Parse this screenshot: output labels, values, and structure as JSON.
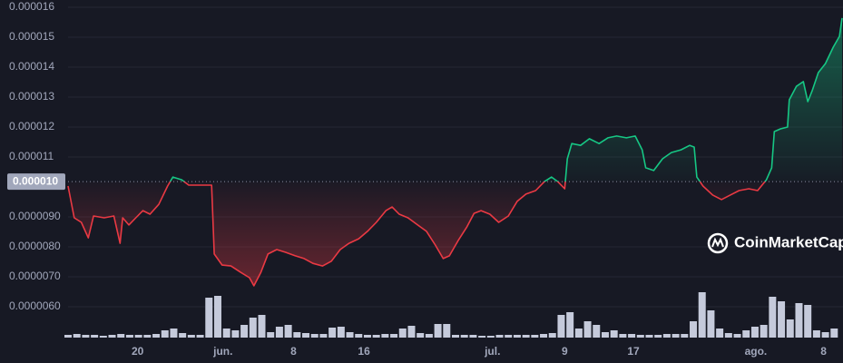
{
  "chart_data": {
    "type": "line",
    "watermark": "CoinMarketCap",
    "baseline": {
      "value": 1.018e-05,
      "label": "0.000010"
    },
    "colors": {
      "up": "#16c784",
      "down": "#ea3943",
      "volume": "#c5cadb"
    },
    "ylim": [
      5e-06,
      1.612e-05
    ],
    "yticks": [
      {
        "value": 6e-06,
        "label": "0.0000060"
      },
      {
        "value": 7e-06,
        "label": "0.0000070"
      },
      {
        "value": 8e-06,
        "label": "0.0000080"
      },
      {
        "value": 9e-06,
        "label": "0.0000090"
      },
      1.1e-05,
      1.2e-05,
      1.3e-05,
      1.4e-05,
      1.5e-05,
      1.6e-05
    ],
    "xlim": [
      0,
      88
    ],
    "xticks": [
      {
        "value": 7.9,
        "label": "20"
      },
      {
        "value": 17.6,
        "label": "jun."
      },
      {
        "value": 25.6,
        "label": "8"
      },
      {
        "value": 33.6,
        "label": "16"
      },
      {
        "value": 48.2,
        "label": "jul."
      },
      {
        "value": 56.4,
        "label": "9"
      },
      {
        "value": 64.2,
        "label": "17"
      },
      {
        "value": 78.1,
        "label": "ago."
      },
      {
        "value": 85.8,
        "label": "8"
      }
    ],
    "grid": true,
    "series": [
      {
        "x": [
          0,
          0.7,
          1.5,
          2.3,
          2.9,
          4.1,
          5.2,
          5.9,
          6.2,
          6.9,
          7.7,
          8.5,
          9.3,
          10.3,
          11.3,
          11.9,
          12.9,
          13.7,
          16.3,
          16.6,
          17.5,
          18.5,
          19.6,
          20.6,
          21.1,
          21.9,
          22.7,
          23.7,
          24.7,
          25.8,
          26.8,
          27.8,
          28.9,
          29.9,
          30.9,
          31.9,
          33.0,
          34.0,
          35.0,
          36.1,
          36.8,
          37.6,
          38.6,
          39.7,
          40.7,
          41.7,
          42.6,
          43.3,
          44.3,
          45.3,
          46.1,
          46.9,
          47.9,
          48.9,
          50.0,
          51.0,
          52.0,
          53.1,
          54.1,
          54.9,
          55.6,
          56.4,
          56.7,
          57.2,
          58.2,
          59.2,
          60.3,
          61.3,
          62.3,
          63.4,
          64.4,
          65.2,
          65.6,
          66.5,
          67.5,
          68.5,
          69.6,
          70.6,
          71.1,
          71.4,
          72.1,
          73.2,
          74.2,
          75.2,
          76.2,
          77.3,
          78.3,
          79.3,
          79.9,
          80.2,
          80.9,
          81.7,
          81.9,
          82.7,
          83.5,
          84.0,
          84.5,
          85.2,
          86.0,
          86.9,
          87.6,
          87.9
        ],
        "values": [
          1.003e-05,
          8.97e-06,
          8.82e-06,
          8.3e-06,
          9.03e-06,
          8.97e-06,
          9.03e-06,
          8.12e-06,
          8.97e-06,
          8.73e-06,
          8.97e-06,
          9.21e-06,
          9.09e-06,
          9.42e-06,
          1.003e-05,
          1.033e-05,
          1.024e-05,
          1.006e-05,
          1.006e-05,
          7.76e-06,
          7.39e-06,
          7.36e-06,
          7.15e-06,
          6.97e-06,
          6.7e-06,
          7.15e-06,
          7.76e-06,
          7.91e-06,
          7.82e-06,
          7.7e-06,
          7.61e-06,
          7.45e-06,
          7.36e-06,
          7.52e-06,
          7.91e-06,
          8.12e-06,
          8.27e-06,
          8.52e-06,
          8.82e-06,
          9.21e-06,
          9.33e-06,
          9.09e-06,
          8.97e-06,
          8.73e-06,
          8.52e-06,
          8.06e-06,
          7.61e-06,
          7.7e-06,
          8.21e-06,
          8.67e-06,
          9.12e-06,
          9.21e-06,
          9.09e-06,
          8.82e-06,
          9.03e-06,
          9.52e-06,
          9.76e-06,
          9.88e-06,
          1.018e-05,
          1.033e-05,
          1.018e-05,
          9.94e-06,
          1.094e-05,
          1.145e-05,
          1.139e-05,
          1.161e-05,
          1.145e-05,
          1.164e-05,
          1.17e-05,
          1.164e-05,
          1.17e-05,
          1.124e-05,
          1.064e-05,
          1.055e-05,
          1.094e-05,
          1.115e-05,
          1.124e-05,
          1.139e-05,
          1.133e-05,
          1.033e-05,
          1.003e-05,
          9.73e-06,
          9.58e-06,
          9.73e-06,
          9.88e-06,
          9.94e-06,
          9.88e-06,
          1.024e-05,
          1.064e-05,
          1.185e-05,
          1.194e-05,
          1.2e-05,
          1.291e-05,
          1.336e-05,
          1.352e-05,
          1.285e-05,
          1.321e-05,
          1.382e-05,
          1.412e-05,
          1.467e-05,
          1.503e-05,
          1.564e-05
        ]
      }
    ],
    "volume": {
      "x": [
        0,
        1,
        2,
        3,
        4,
        5,
        6,
        7,
        8,
        9,
        10,
        11,
        12,
        13,
        14,
        15,
        16,
        17,
        18,
        19,
        20,
        21,
        22,
        23,
        24,
        25,
        26,
        27,
        28,
        29,
        30,
        31,
        32,
        33,
        34,
        35,
        36,
        37,
        38,
        39,
        40,
        41,
        42,
        43,
        44,
        45,
        46,
        47,
        48,
        49,
        50,
        51,
        52,
        53,
        54,
        55,
        56,
        57,
        58,
        59,
        60,
        61,
        62,
        63,
        64,
        65,
        66,
        67,
        68,
        69,
        70,
        71,
        72,
        73,
        74,
        75,
        76,
        77,
        78,
        79,
        80,
        81,
        82,
        83,
        84,
        85,
        86,
        87
      ],
      "values": [
        3,
        4,
        3,
        3,
        2,
        3,
        4,
        3,
        3,
        3,
        4,
        8,
        10,
        5,
        3,
        3,
        44,
        46,
        10,
        8,
        14,
        22,
        25,
        6,
        12,
        14,
        6,
        5,
        4,
        4,
        11,
        12,
        6,
        4,
        3,
        3,
        4,
        4,
        10,
        13,
        5,
        4,
        15,
        15,
        3,
        3,
        3,
        2,
        2,
        3,
        3,
        3,
        3,
        3,
        4,
        5,
        25,
        28,
        10,
        18,
        14,
        6,
        8,
        4,
        4,
        3,
        3,
        3,
        4,
        4,
        4,
        18,
        50,
        30,
        10,
        5,
        4,
        8,
        12,
        14,
        45,
        40,
        20,
        38,
        36,
        8,
        6,
        10
      ]
    }
  }
}
